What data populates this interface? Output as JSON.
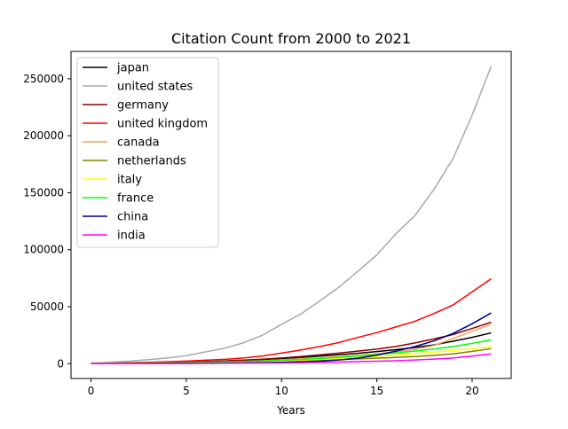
{
  "chart_data": {
    "type": "line",
    "title": "Citation Count from 2000 to 2021",
    "xlabel": "Years",
    "ylabel": "",
    "xlim": [
      -1.05,
      22.05
    ],
    "ylim": [
      -13000,
      274000
    ],
    "xticks": [
      0,
      5,
      10,
      15,
      20
    ],
    "yticks": [
      0,
      50000,
      100000,
      150000,
      200000,
      250000
    ],
    "legend_position": "upper-left",
    "grid": false,
    "x": [
      0,
      1,
      2,
      3,
      4,
      5,
      6,
      7,
      8,
      9,
      10,
      11,
      12,
      13,
      14,
      15,
      16,
      17,
      18,
      19,
      20,
      21
    ],
    "series": [
      {
        "name": "japan",
        "color": "#000000",
        "values": [
          100,
          250,
          450,
          700,
          1000,
          1400,
          1800,
          2300,
          2900,
          3600,
          4500,
          5500,
          6600,
          7800,
          9100,
          10600,
          12300,
          14200,
          16500,
          19700,
          23100,
          27000
        ]
      },
      {
        "name": "united states",
        "color": "#a9a9a9",
        "values": [
          400,
          1200,
          2200,
          3500,
          5000,
          7000,
          10300,
          13500,
          18300,
          25000,
          34500,
          43500,
          55000,
          67000,
          81000,
          95500,
          114000,
          130000,
          153000,
          180000,
          218000,
          261000
        ]
      },
      {
        "name": "germany",
        "color": "#8b0000",
        "values": [
          100,
          200,
          400,
          700,
          1000,
          1400,
          1900,
          2400,
          3100,
          3900,
          5000,
          6300,
          7700,
          9300,
          11000,
          12800,
          15100,
          18200,
          21700,
          25600,
          30900,
          36400
        ]
      },
      {
        "name": "united kingdom",
        "color": "#ff0000",
        "values": [
          200,
          500,
          800,
          1200,
          1700,
          2300,
          3000,
          3800,
          5000,
          6700,
          9300,
          12000,
          15000,
          18500,
          23000,
          27200,
          32200,
          37200,
          44000,
          51500,
          63000,
          74500
        ]
      },
      {
        "name": "canada",
        "color": "#f4a460",
        "values": [
          100,
          200,
          300,
          500,
          700,
          900,
          1200,
          1600,
          2000,
          2600,
          3300,
          4100,
          5000,
          6000,
          7200,
          8600,
          10300,
          12600,
          16000,
          22000,
          28500,
          34500
        ]
      },
      {
        "name": "netherlands",
        "color": "#808000",
        "values": [
          50,
          100,
          200,
          300,
          400,
          600,
          800,
          1000,
          1300,
          1600,
          2000,
          2500,
          3000,
          3600,
          4200,
          4800,
          5500,
          6300,
          7200,
          8600,
          10800,
          13200
        ]
      },
      {
        "name": "italy",
        "color": "#ffff00",
        "values": [
          50,
          100,
          200,
          300,
          500,
          700,
          900,
          1200,
          1500,
          1900,
          2400,
          3000,
          3700,
          4500,
          5400,
          6400,
          7500,
          8700,
          10000,
          11500,
          13200,
          15000
        ]
      },
      {
        "name": "france",
        "color": "#00ff00",
        "values": [
          100,
          200,
          300,
          500,
          700,
          900,
          1200,
          1500,
          1900,
          2400,
          3000,
          3700,
          4600,
          5600,
          6700,
          8000,
          9400,
          11000,
          12900,
          15000,
          17800,
          20800
        ]
      },
      {
        "name": "china",
        "color": "#00008b",
        "values": [
          20,
          40,
          80,
          130,
          200,
          300,
          400,
          550,
          700,
          900,
          1200,
          1600,
          2200,
          3200,
          4800,
          7500,
          11000,
          15000,
          20000,
          26500,
          35000,
          44500
        ]
      },
      {
        "name": "india",
        "color": "#ff00ff",
        "values": [
          10,
          20,
          40,
          70,
          100,
          150,
          200,
          280,
          380,
          500,
          650,
          850,
          1100,
          1400,
          1750,
          2150,
          2600,
          3200,
          4000,
          5000,
          6600,
          8600
        ]
      }
    ]
  }
}
